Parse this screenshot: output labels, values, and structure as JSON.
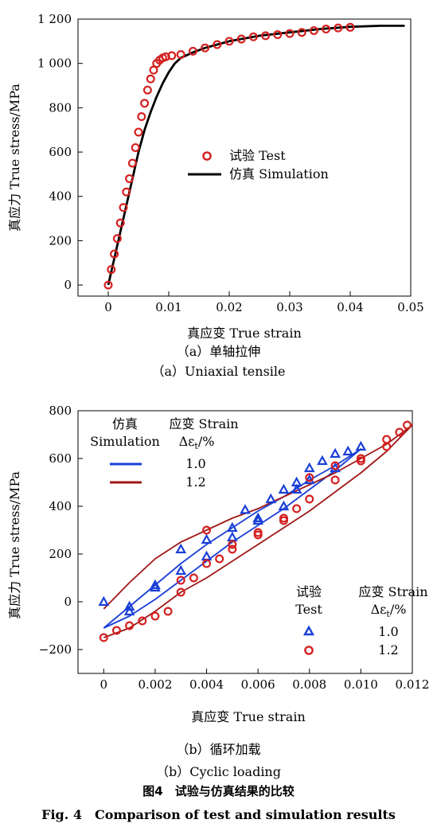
{
  "chart_data": [
    {
      "id": "a",
      "type": "scatter",
      "xlabel": "真应变 True strain",
      "ylabel": "真应力 True stress/MPa",
      "xlim": [
        -0.005,
        0.05
      ],
      "ylim": [
        -50,
        1200
      ],
      "xticks": [
        0,
        0.01,
        0.02,
        0.03,
        0.04,
        0.05
      ],
      "xtick_labels": [
        "0",
        "0.01",
        "0.02",
        "0.03",
        "0.04",
        "0.05"
      ],
      "yticks": [
        0,
        200,
        400,
        600,
        800,
        1000,
        1200
      ],
      "ytick_labels": [
        "0",
        "200",
        "400",
        "600",
        "800",
        "1 000",
        "1 200"
      ],
      "legend_position": "center-right",
      "series": [
        {
          "name": "试验 Test",
          "kind": "markers",
          "marker": "circle",
          "color": "#d42020",
          "x": [
            0,
            0.0005,
            0.001,
            0.0015,
            0.002,
            0.0025,
            0.003,
            0.0035,
            0.004,
            0.0045,
            0.005,
            0.0055,
            0.006,
            0.0065,
            0.007,
            0.0075,
            0.008,
            0.0085,
            0.009,
            0.0095,
            0.0105,
            0.012,
            0.014,
            0.016,
            0.018,
            0.02,
            0.022,
            0.024,
            0.026,
            0.028,
            0.03,
            0.032,
            0.034,
            0.036,
            0.038,
            0.04
          ],
          "y": [
            0,
            70,
            140,
            210,
            280,
            350,
            420,
            480,
            550,
            620,
            690,
            760,
            820,
            880,
            930,
            970,
            1000,
            1015,
            1025,
            1030,
            1035,
            1040,
            1055,
            1070,
            1085,
            1100,
            1110,
            1120,
            1125,
            1130,
            1135,
            1140,
            1148,
            1155,
            1160,
            1163
          ]
        },
        {
          "name": "仿真 Simulation",
          "kind": "line",
          "color": "#000000",
          "x": [
            0,
            0.001,
            0.002,
            0.003,
            0.004,
            0.005,
            0.006,
            0.007,
            0.008,
            0.009,
            0.01,
            0.011,
            0.012,
            0.014,
            0.016,
            0.018,
            0.02,
            0.025,
            0.03,
            0.035,
            0.04,
            0.045,
            0.049
          ],
          "y": [
            0,
            120,
            240,
            360,
            480,
            600,
            700,
            780,
            850,
            910,
            960,
            1000,
            1025,
            1050,
            1070,
            1085,
            1100,
            1125,
            1140,
            1155,
            1165,
            1170,
            1170
          ]
        }
      ]
    },
    {
      "id": "b",
      "type": "scatter",
      "xlabel": "真应变 True strain",
      "ylabel": "真应力 True stress/MPa",
      "xlim": [
        -0.001,
        0.012
      ],
      "ylim": [
        -300,
        800
      ],
      "xticks": [
        0,
        0.002,
        0.004,
        0.006,
        0.008,
        0.01,
        0.012
      ],
      "xtick_labels": [
        "0",
        "0.002",
        "0.004",
        "0.006",
        "0.008",
        "0.010",
        "0.012"
      ],
      "yticks": [
        -200,
        0,
        200,
        400,
        600,
        800
      ],
      "ytick_labels": [
        "−200",
        "0",
        "200",
        "400",
        "600",
        "800"
      ],
      "legend_sim": {
        "col1": "仿真",
        "col1b": "Simulation",
        "col2": "应变 Strain",
        "col2b": "Δε"
      },
      "legend_test": {
        "col1": "试验",
        "col1b": "Test",
        "col2": "应变 Strain",
        "col2b": "Δε"
      },
      "legend_sub": "t",
      "legend_unit": "/%",
      "series": [
        {
          "name": "仿真 1.0",
          "level": "1.0",
          "kind": "loop-line",
          "color": "#1a3fd6",
          "x": [
            0,
            0.001,
            0.002,
            0.003,
            0.004,
            0.005,
            0.006,
            0.007,
            0.008,
            0.009,
            0.01,
            0.009,
            0.008,
            0.007,
            0.006,
            0.005,
            0.004,
            0.003,
            0.002,
            0.001,
            0
          ],
          "y": [
            -110,
            -20,
            70,
            160,
            240,
            310,
            380,
            440,
            510,
            570,
            640,
            550,
            470,
            390,
            320,
            250,
            170,
            90,
            10,
            -60,
            -110
          ]
        },
        {
          "name": "仿真 1.2",
          "level": "1.2",
          "kind": "loop-line",
          "color": "#a01818",
          "x": [
            0,
            0.001,
            0.002,
            0.003,
            0.004,
            0.005,
            0.006,
            0.007,
            0.008,
            0.009,
            0.01,
            0.011,
            0.012,
            0.011,
            0.01,
            0.009,
            0.008,
            0.007,
            0.006,
            0.005,
            0.004,
            0.003,
            0.002,
            0.001,
            0
          ],
          "y": [
            -30,
            80,
            180,
            250,
            300,
            350,
            390,
            440,
            490,
            540,
            600,
            660,
            740,
            630,
            540,
            460,
            380,
            310,
            240,
            170,
            100,
            40,
            -40,
            -110,
            -150
          ]
        },
        {
          "name": "试验 1.0",
          "level": "1.0",
          "kind": "markers",
          "marker": "triangle",
          "color": "#1a3fd6",
          "x": [
            0,
            0.001,
            0.002,
            0.003,
            0.004,
            0.005,
            0.0055,
            0.006,
            0.0065,
            0.007,
            0.0075,
            0.008,
            0.0085,
            0.009,
            0.0095,
            0.01,
            0.009,
            0.008,
            0.0075,
            0.007,
            0.006,
            0.005,
            0.004,
            0.003,
            0.002,
            0.001
          ],
          "y": [
            0,
            -20,
            60,
            220,
            260,
            310,
            385,
            350,
            430,
            470,
            500,
            560,
            590,
            620,
            630,
            650,
            560,
            510,
            470,
            400,
            340,
            270,
            190,
            130,
            70,
            -40
          ]
        },
        {
          "name": "试验 1.2",
          "level": "1.2",
          "kind": "markers",
          "marker": "circle",
          "color": "#d42020",
          "x": [
            0,
            0.0005,
            0.001,
            0.0015,
            0.002,
            0.0025,
            0.003,
            0.0035,
            0.004,
            0.0045,
            0.005,
            0.006,
            0.007,
            0.0075,
            0.008,
            0.009,
            0.01,
            0.011,
            0.0115,
            0.0118,
            0.011,
            0.01,
            0.009,
            0.008,
            0.007,
            0.006,
            0.005,
            0.004,
            0.003
          ],
          "y": [
            -150,
            -120,
            -100,
            -80,
            -60,
            -40,
            40,
            100,
            300,
            180,
            240,
            290,
            340,
            390,
            520,
            570,
            600,
            680,
            710,
            740,
            650,
            590,
            510,
            430,
            350,
            280,
            220,
            160,
            90
          ]
        }
      ]
    }
  ],
  "captions": {
    "a_cn": "（a）单轴拉伸",
    "a_en": "（a）Uniaxial tensile",
    "b_cn": "（b）循环加载",
    "b_en": "（b）Cyclic loading",
    "fig_cn": "图4　试验与仿真结果的比较",
    "fig_en": "Fig. 4　Comparison of test and simulation results"
  }
}
